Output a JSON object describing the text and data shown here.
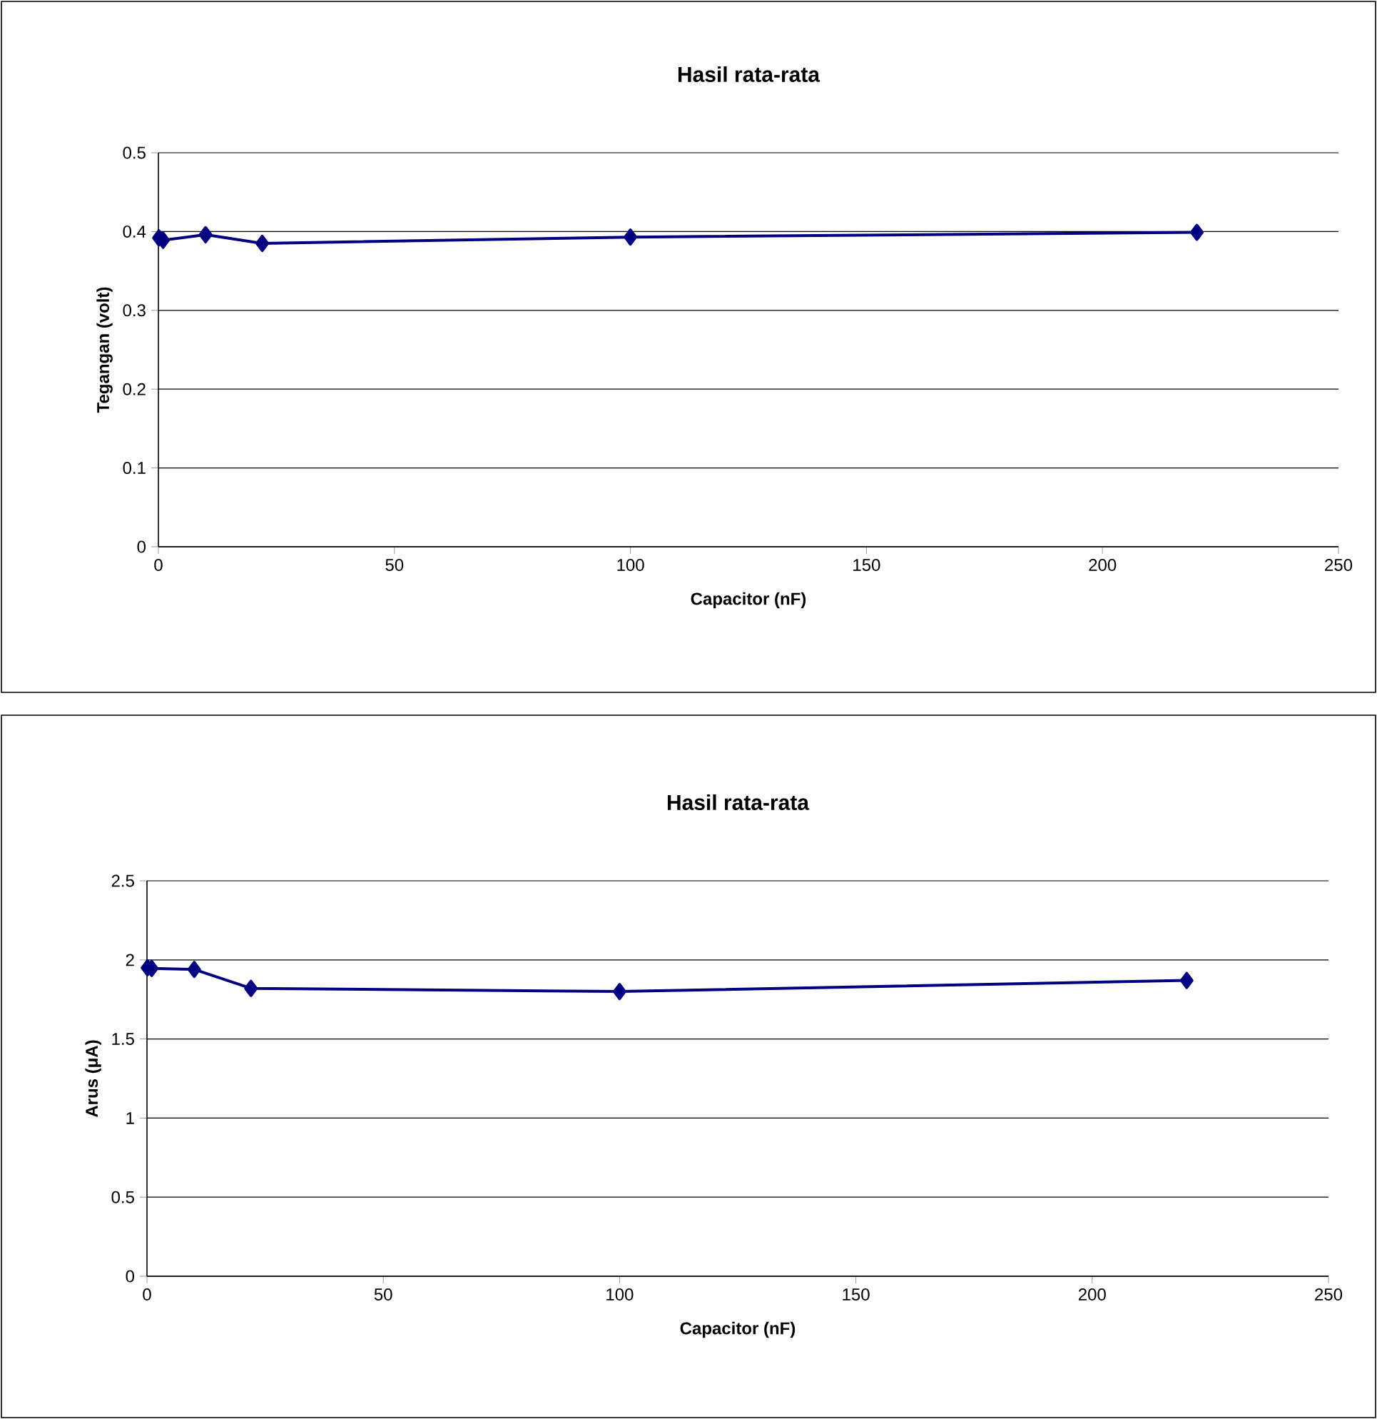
{
  "chart_data": [
    {
      "type": "line",
      "title": "Hasil rata-rata",
      "xlabel": "Capacitor (nF)",
      "ylabel": "Tegangan (volt)",
      "x": [
        0.1,
        1,
        10,
        22,
        100,
        220
      ],
      "series": [
        {
          "color": "#000080",
          "values": [
            0.392,
            0.389,
            0.396,
            0.385,
            0.393,
            0.399
          ]
        }
      ],
      "xlim": [
        0,
        250
      ],
      "ylim": [
        0,
        0.5
      ],
      "xticks": [
        0,
        50,
        100,
        150,
        200,
        250
      ],
      "yticks": [
        0,
        0.1,
        0.2,
        0.3,
        0.4,
        0.5
      ],
      "grid": "y",
      "marker": "diamond"
    },
    {
      "type": "line",
      "title": "Hasil rata-rata",
      "xlabel": "Capacitor (nF)",
      "ylabel": "Arus (μA)",
      "x": [
        0.1,
        1,
        10,
        22,
        100,
        220
      ],
      "series": [
        {
          "color": "#000080",
          "values": [
            1.95,
            1.946,
            1.94,
            1.82,
            1.8,
            1.87
          ]
        }
      ],
      "xlim": [
        0,
        250
      ],
      "ylim": [
        0,
        2.5
      ],
      "xticks": [
        0,
        50,
        100,
        150,
        200,
        250
      ],
      "yticks": [
        0,
        0.5,
        1,
        1.5,
        2,
        2.5
      ],
      "grid": "y",
      "marker": "diamond"
    }
  ]
}
